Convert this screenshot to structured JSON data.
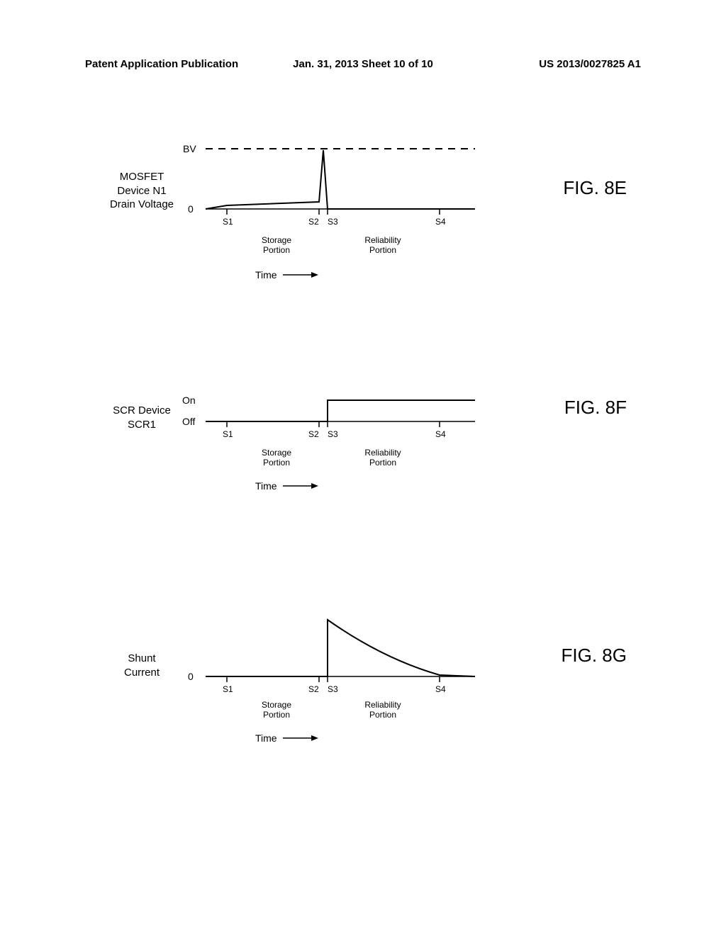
{
  "header": {
    "left": "Patent Application Publication",
    "center": "Jan. 31, 2013  Sheet 10 of 10",
    "right": "US 2013/0027825 A1"
  },
  "figures": {
    "fig8e": {
      "title": "FIG. 8E",
      "ylabel": "MOSFET\nDevice N1\nDrain Voltage",
      "yvalues": {
        "top": "BV",
        "zero": "0"
      },
      "xticks": [
        "S1",
        "S2",
        "S3",
        "S4"
      ],
      "xtick_positions": [
        40,
        170,
        182,
        340
      ],
      "portions": {
        "storage": "Storage\nPortion",
        "reliability": "Reliability\nPortion"
      },
      "axis_label": "Time",
      "colors": {
        "line": "#000000",
        "dash": "#000000",
        "bg": "#ffffff"
      },
      "bv_y": 10,
      "zero_y": 95,
      "line_path": "M 10 95 L 40 90 L 170 85 L 176 12 L 182 95 L 390 95",
      "dash_y": 10,
      "xaxis_y": 95
    },
    "fig8f": {
      "title": "FIG. 8F",
      "ylabel": "SCR Device\nSCR1",
      "yvalues": {
        "on": "On",
        "off": "Off"
      },
      "xticks": [
        "S1",
        "S2",
        "S3",
        "S4"
      ],
      "xtick_positions": [
        40,
        170,
        182,
        340
      ],
      "portions": {
        "storage": "Storage\nPortion",
        "reliability": "Reliability\nPortion"
      },
      "axis_label": "Time",
      "colors": {
        "line": "#000000",
        "bg": "#ffffff"
      },
      "on_y": 25,
      "off_y": 55,
      "line_path": "M 10 55 L 182 55 L 182 25 L 390 25",
      "xaxis_y": 55
    },
    "fig8g": {
      "title": "FIG. 8G",
      "ylabel": "Shunt\nCurrent",
      "yvalues": {
        "zero": "0"
      },
      "xticks": [
        "S1",
        "S2",
        "S3",
        "S4"
      ],
      "xtick_positions": [
        40,
        170,
        182,
        340
      ],
      "portions": {
        "storage": "Storage\nPortion",
        "reliability": "Reliability\nPortion"
      },
      "axis_label": "Time",
      "colors": {
        "line": "#000000",
        "bg": "#ffffff"
      },
      "zero_y": 95,
      "line_path": "M 10 95 L 182 95 L 182 15 Q 260 70 340 93 L 390 95",
      "xaxis_y": 95
    }
  }
}
